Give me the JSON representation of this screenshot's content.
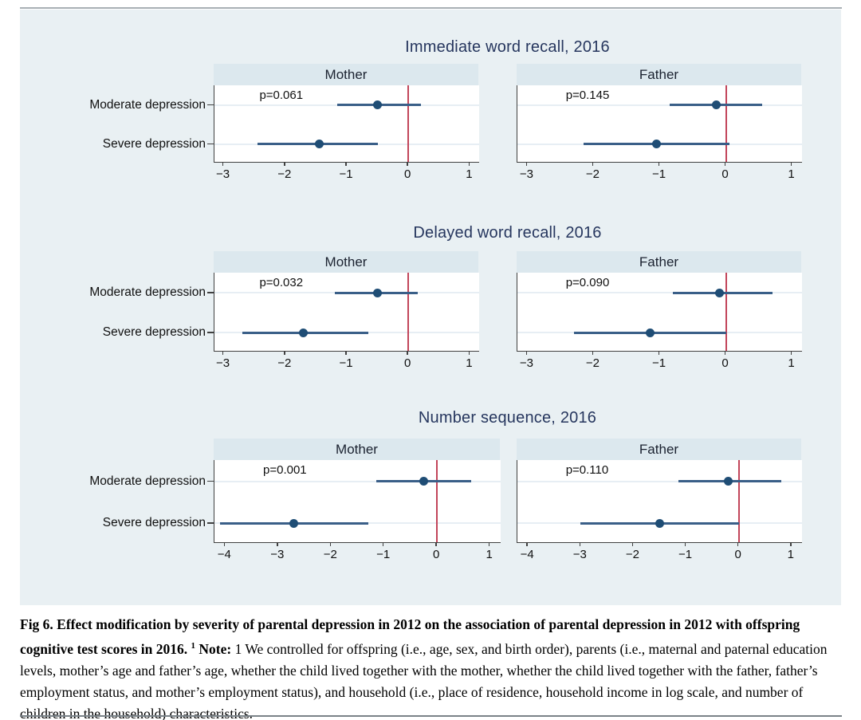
{
  "colors": {
    "figure_background": "#e9f0f3",
    "header_band": "#dce8ee",
    "plot_background": "#ffffff",
    "gridline": "#e7eef4",
    "ci_line": "#3a5f88",
    "point": "#1f4d75",
    "zero_line": "#c2455a",
    "axis": "#404040",
    "title_text": "#26365e",
    "rule_top": "#a8b0b5",
    "rule_bottom": "#7a8288"
  },
  "chart_data": [
    {
      "type": "scatter",
      "subtype": "forest-plot",
      "title": "Immediate word recall, 2016",
      "categories": [
        "Moderate depression",
        "Severe depression"
      ],
      "x_ticks": [
        -3,
        -2,
        -1,
        0,
        1
      ],
      "xlim": [
        -3.15,
        1.15
      ],
      "zero_line_x": 0,
      "grid": true,
      "panels": [
        {
          "header": "Mother",
          "p_label": "p=0.061",
          "series": [
            {
              "category": "Moderate depression",
              "estimate": -0.5,
              "ci_low": -1.15,
              "ci_high": 0.2
            },
            {
              "category": "Severe depression",
              "estimate": -1.45,
              "ci_low": -2.45,
              "ci_high": -0.5
            }
          ]
        },
        {
          "header": "Father",
          "p_label": "p=0.145",
          "series": [
            {
              "category": "Moderate depression",
              "estimate": -0.15,
              "ci_low": -0.85,
              "ci_high": 0.55
            },
            {
              "category": "Severe depression",
              "estimate": -1.05,
              "ci_low": -2.15,
              "ci_high": 0.05
            }
          ]
        }
      ]
    },
    {
      "type": "scatter",
      "subtype": "forest-plot",
      "title": "Delayed word recall, 2016",
      "categories": [
        "Moderate depression",
        "Severe depression"
      ],
      "x_ticks": [
        -3,
        -2,
        -1,
        0,
        1
      ],
      "xlim": [
        -3.15,
        1.15
      ],
      "zero_line_x": 0,
      "grid": true,
      "panels": [
        {
          "header": "Mother",
          "p_label": "p=0.032",
          "series": [
            {
              "category": "Moderate depression",
              "estimate": -0.5,
              "ci_low": -1.2,
              "ci_high": 0.15
            },
            {
              "category": "Severe depression",
              "estimate": -1.7,
              "ci_low": -2.7,
              "ci_high": -0.65
            }
          ]
        },
        {
          "header": "Father",
          "p_label": "p=0.090",
          "series": [
            {
              "category": "Moderate depression",
              "estimate": -0.1,
              "ci_low": -0.8,
              "ci_high": 0.7
            },
            {
              "category": "Severe depression",
              "estimate": -1.15,
              "ci_low": -2.3,
              "ci_high": 0.0
            }
          ]
        }
      ]
    },
    {
      "type": "scatter",
      "subtype": "forest-plot",
      "title": "Number sequence, 2016",
      "categories": [
        "Moderate depression",
        "Severe depression"
      ],
      "x_ticks": [
        -4,
        -3,
        -2,
        -1,
        0,
        1
      ],
      "xlim": [
        -4.2,
        1.2
      ],
      "zero_line_x": 0,
      "grid": true,
      "panels": [
        {
          "header": "Mother",
          "p_label": "p=0.001",
          "series": [
            {
              "category": "Moderate depression",
              "estimate": -0.25,
              "ci_low": -1.15,
              "ci_high": 0.65
            },
            {
              "category": "Severe depression",
              "estimate": -2.7,
              "ci_low": -4.1,
              "ci_high": -1.3
            }
          ]
        },
        {
          "header": "Father",
          "p_label": "p=0.110",
          "series": [
            {
              "category": "Moderate depression",
              "estimate": -0.2,
              "ci_low": -1.15,
              "ci_high": 0.8
            },
            {
              "category": "Severe depression",
              "estimate": -1.5,
              "ci_low": -3.0,
              "ci_high": 0.0
            }
          ]
        }
      ]
    }
  ],
  "caption": {
    "lead_bold": "Fig 6. Effect modification by severity of parental depression in 2012 on the association of parental depression in 2012 with offspring cognitive test scores in 2016.",
    "footnote_marker": "1",
    "note_label": "Note:",
    "note_text": "1 We controlled for offspring (i.e., age, sex, and birth order), parents (i.e., maternal and paternal education levels, mother’s age and father’s age, whether the child lived together with the mother, whether the child lived together with the father, father’s employment status, and mother’s employment status), and household (i.e., place of residence, household income in log scale, and number of children in the household) characteristics."
  }
}
